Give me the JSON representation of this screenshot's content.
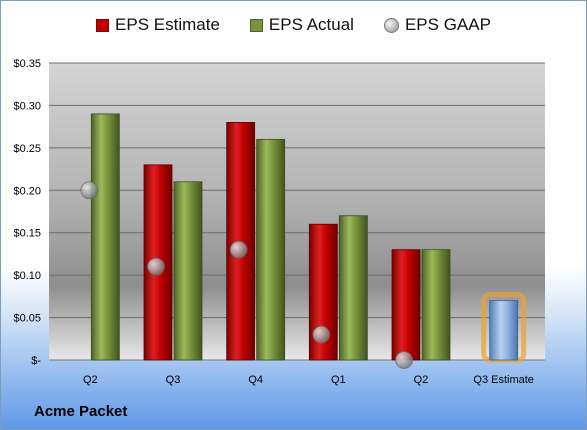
{
  "legend": {
    "estimate": "EPS Estimate",
    "actual": "EPS Actual",
    "gaap": "EPS GAAP"
  },
  "company": "Acme Packet",
  "colors": {
    "estimate": "#c00000",
    "actual": "#77933c",
    "gaap": "#a6a6a6",
    "forecast": "#8db3e2",
    "forecast_glow": "#f0a030"
  },
  "chart_data": {
    "type": "bar",
    "categories": [
      "Q2",
      "Q3",
      "Q4",
      "Q1",
      "Q2",
      "Q3 Estimate"
    ],
    "series": [
      {
        "name": "EPS Estimate",
        "values": [
          null,
          0.23,
          0.28,
          0.16,
          0.13,
          0.07
        ]
      },
      {
        "name": "EPS Actual",
        "values": [
          0.29,
          0.21,
          0.26,
          0.17,
          0.13,
          null
        ]
      },
      {
        "name": "EPS GAAP",
        "values": [
          0.2,
          0.11,
          0.13,
          0.03,
          0.0,
          null
        ]
      }
    ],
    "ylim": [
      0,
      0.35
    ],
    "yticks": [
      0,
      0.05,
      0.1,
      0.15,
      0.2,
      0.25,
      0.3,
      0.35
    ],
    "ytick_labels": [
      "$-",
      "$0.05",
      "$0.10",
      "$0.15",
      "$0.20",
      "$0.25",
      "$0.30",
      "$0.35"
    ],
    "grid": true,
    "legend_position": "top"
  }
}
